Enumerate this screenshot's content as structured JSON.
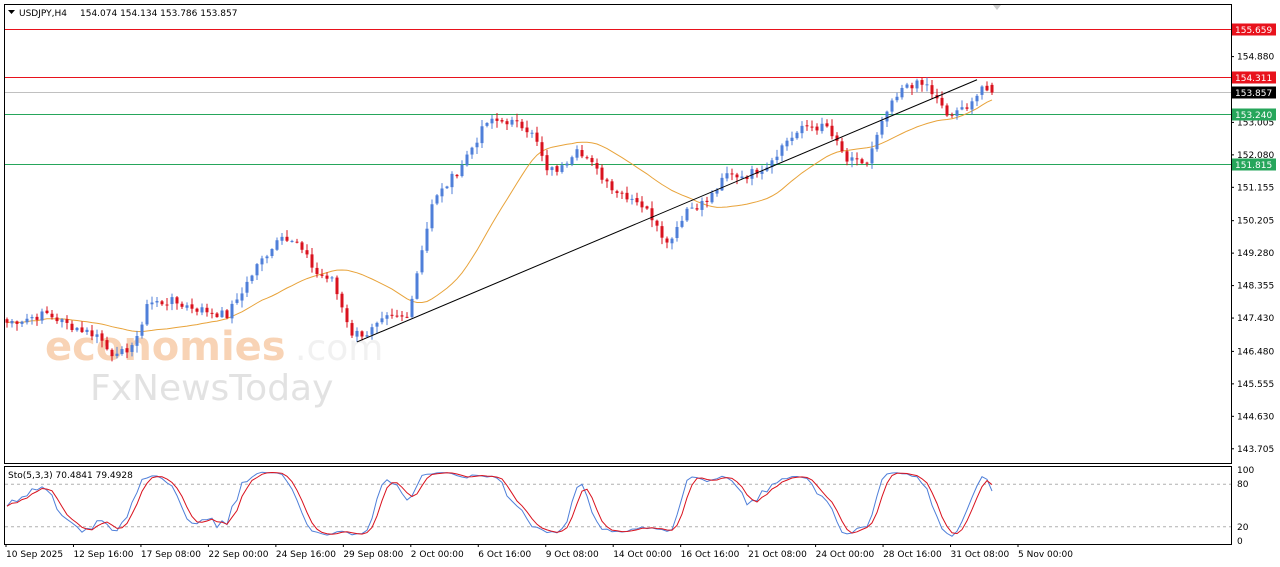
{
  "chart_data": [
    {
      "type": "candlestick",
      "symbol_header": "USDJPY,H4",
      "ohlc_header": "154.074 154.134 153.786 153.857",
      "ylim": [
        143.3,
        156.35
      ],
      "y_ticks": [
        "155.585",
        "154.880",
        "153.930",
        "153.005",
        "152.080",
        "151.155",
        "150.205",
        "149.280",
        "148.355",
        "147.430",
        "146.480",
        "145.555",
        "144.630",
        "143.705"
      ],
      "x_ticks": [
        "10 Sep 2025",
        "12 Sep 16:00",
        "17 Sep 08:00",
        "22 Sep 00:00",
        "24 Sep 16:00",
        "29 Sep 08:00",
        "2 Oct 00:00",
        "6 Oct 16:00",
        "9 Oct 08:00",
        "14 Oct 00:00",
        "16 Oct 16:00",
        "21 Oct 08:00",
        "24 Oct 00:00",
        "28 Oct 16:00",
        "31 Oct 08:00",
        "5 Nov 00:00"
      ],
      "horizontal_levels": [
        {
          "label": "155.659",
          "value": 155.659,
          "color": "#e8121c",
          "role": "resistance"
        },
        {
          "label": "154.311",
          "value": 154.311,
          "color": "#e8121c",
          "role": "resistance"
        },
        {
          "label": "153.857",
          "value": 153.857,
          "color": "#000000",
          "role": "current-price"
        },
        {
          "label": "153.240",
          "value": 153.24,
          "color": "#26a65b",
          "role": "support"
        },
        {
          "label": "151.815",
          "value": 151.815,
          "color": "#26a65b",
          "role": "support"
        }
      ],
      "trendline": {
        "from": {
          "index": 70,
          "price": 146.75
        },
        "to": {
          "index": 194,
          "price": 154.22
        },
        "color": "#000000"
      },
      "moving_average": {
        "color": "#e8a33a"
      },
      "bull_color": "#4f7fd9",
      "bear_color": "#d9121e",
      "anchors": [
        [
          0,
          147.3
        ],
        [
          8,
          147.55
        ],
        [
          12,
          147.25
        ],
        [
          18,
          146.95
        ],
        [
          22,
          146.3
        ],
        [
          26,
          146.8
        ],
        [
          28,
          147.85
        ],
        [
          33,
          147.9
        ],
        [
          38,
          147.7
        ],
        [
          44,
          147.5
        ],
        [
          50,
          148.9
        ],
        [
          55,
          149.85
        ],
        [
          58,
          149.55
        ],
        [
          62,
          148.7
        ],
        [
          65,
          148.5
        ],
        [
          69,
          147.0
        ],
        [
          72,
          147.0
        ],
        [
          76,
          147.4
        ],
        [
          80,
          147.45
        ],
        [
          85,
          150.7
        ],
        [
          90,
          151.6
        ],
        [
          96,
          153.0
        ],
        [
          100,
          153.05
        ],
        [
          105,
          152.8
        ],
        [
          108,
          151.6
        ],
        [
          111,
          151.7
        ],
        [
          114,
          152.35
        ],
        [
          118,
          151.6
        ],
        [
          122,
          151.05
        ],
        [
          126,
          150.8
        ],
        [
          130,
          150.15
        ],
        [
          132,
          149.55
        ],
        [
          136,
          150.55
        ],
        [
          140,
          150.75
        ],
        [
          144,
          151.5
        ],
        [
          148,
          151.5
        ],
        [
          152,
          151.8
        ],
        [
          156,
          152.5
        ],
        [
          160,
          152.9
        ],
        [
          164,
          152.85
        ],
        [
          168,
          151.9
        ],
        [
          172,
          151.85
        ],
        [
          176,
          153.3
        ],
        [
          180,
          154.1
        ],
        [
          184,
          154.05
        ],
        [
          188,
          153.2
        ],
        [
          190,
          153.25
        ],
        [
          195,
          153.9
        ],
        [
          197,
          153.85
        ]
      ],
      "stochastic": {
        "label": "Sto(5,3,3) 70.4841 79.4928",
        "ylim": [
          0,
          100
        ],
        "y_ticks": [
          "100",
          "80",
          "20",
          "0"
        ],
        "levels": [
          80,
          20
        ],
        "main_color": "#4f7fd9",
        "signal_color": "#d9121e"
      }
    }
  ]
}
